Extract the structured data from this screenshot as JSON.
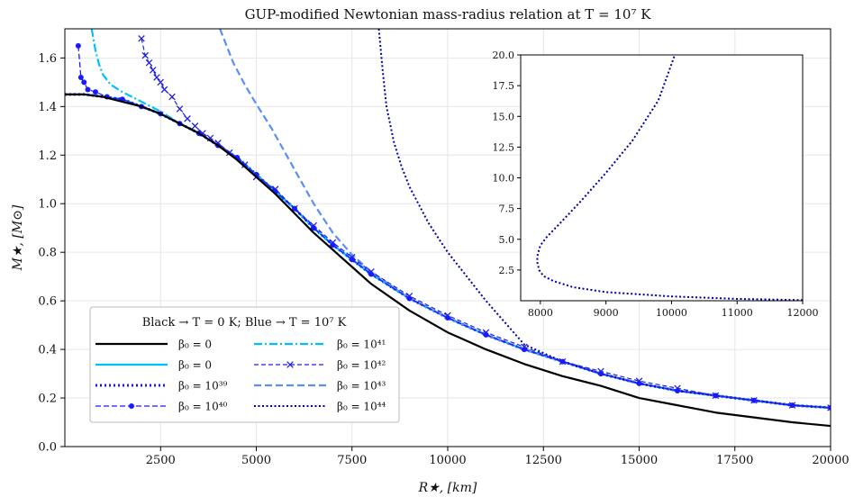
{
  "chart_data": {
    "type": "line",
    "title": "GUP-modified Newtonian mass-radius relation at T = 10⁷ K",
    "xlabel": "R★, [km]",
    "ylabel": "M★, [M⊙]",
    "xlim": [
      0,
      20000
    ],
    "ylim": [
      0,
      1.72
    ],
    "xticks": [
      "2500",
      "5000",
      "7500",
      "10000",
      "12500",
      "15000",
      "17500",
      "20000"
    ],
    "yticks": [
      "0.0",
      "0.2",
      "0.4",
      "0.6",
      "0.8",
      "1.0",
      "1.2",
      "1.4",
      "1.6"
    ],
    "grid": true,
    "legend": {
      "title": "Black → T = 0 K; Blue → T = 10⁷ K",
      "placement": "lower-left",
      "columns": 2
    },
    "series": [
      {
        "name": "β₀ = 0",
        "color": "#000000",
        "style": "solid",
        "x": [
          0,
          500,
          1000,
          1500,
          2000,
          2500,
          3000,
          3500,
          4000,
          4500,
          5000,
          5500,
          6000,
          6500,
          7000,
          7500,
          8000,
          9000,
          10000,
          11000,
          12000,
          13000,
          14000,
          15000,
          16000,
          17000,
          18000,
          19000,
          20000
        ],
        "y": [
          1.45,
          1.45,
          1.44,
          1.42,
          1.4,
          1.37,
          1.33,
          1.29,
          1.24,
          1.18,
          1.11,
          1.04,
          0.96,
          0.88,
          0.81,
          0.74,
          0.67,
          0.56,
          0.47,
          0.4,
          0.34,
          0.29,
          0.25,
          0.2,
          0.17,
          0.14,
          0.12,
          0.1,
          0.085
        ]
      },
      {
        "name": "β₀ = 0",
        "color": "#00bfff",
        "style": "solid",
        "x": [
          0,
          500,
          1000,
          1500,
          2000,
          2500,
          3000,
          3500,
          4000,
          4500,
          5000,
          5500,
          6000,
          6500,
          7000,
          7500,
          8000,
          9000,
          10000,
          11000,
          12000,
          13000,
          14000,
          15000,
          16000,
          17000,
          18000,
          19000,
          20000
        ],
        "y": [
          1.45,
          1.45,
          1.44,
          1.43,
          1.4,
          1.37,
          1.33,
          1.29,
          1.24,
          1.19,
          1.12,
          1.05,
          0.98,
          0.9,
          0.83,
          0.77,
          0.71,
          0.61,
          0.53,
          0.46,
          0.4,
          0.35,
          0.3,
          0.26,
          0.23,
          0.21,
          0.19,
          0.17,
          0.16
        ]
      },
      {
        "name": "β₀ = 10³⁹",
        "color": "#1a1aff",
        "style": "dotted-thick",
        "x": [
          0,
          500,
          1000,
          1500,
          2000,
          2500,
          3000,
          3500,
          4000,
          4500,
          5000,
          5500,
          6000,
          6500,
          7000,
          7500,
          8000,
          9000,
          10000,
          11000,
          12000,
          13000,
          14000,
          15000,
          16000,
          17000,
          18000,
          19000,
          20000
        ],
        "y": [
          1.45,
          1.45,
          1.44,
          1.43,
          1.4,
          1.37,
          1.33,
          1.29,
          1.24,
          1.19,
          1.12,
          1.05,
          0.98,
          0.9,
          0.83,
          0.77,
          0.71,
          0.61,
          0.53,
          0.46,
          0.4,
          0.35,
          0.3,
          0.26,
          0.23,
          0.21,
          0.19,
          0.17,
          0.16
        ]
      },
      {
        "name": "β₀ = 10⁴⁰",
        "color": "#1a1aff",
        "style": "dashed-dot-marker",
        "x": [
          350,
          420,
          500,
          600,
          800,
          1100,
          1500,
          2000,
          2500,
          3000,
          3500,
          4000,
          4500,
          5000,
          5500,
          6000,
          6500,
          7000,
          7500,
          8000,
          9000,
          10000,
          11000,
          12000,
          13000,
          14000,
          15000,
          16000,
          17000,
          18000,
          19000,
          20000
        ],
        "y": [
          1.65,
          1.52,
          1.5,
          1.47,
          1.46,
          1.44,
          1.43,
          1.4,
          1.37,
          1.33,
          1.29,
          1.24,
          1.19,
          1.12,
          1.05,
          0.98,
          0.9,
          0.83,
          0.77,
          0.71,
          0.61,
          0.53,
          0.46,
          0.4,
          0.35,
          0.3,
          0.26,
          0.23,
          0.21,
          0.19,
          0.17,
          0.16
        ]
      },
      {
        "name": "β₀ = 10⁴¹",
        "color": "#00bfff",
        "style": "dashdot",
        "x": [
          700,
          800,
          900,
          1000,
          1200,
          1500,
          2000,
          2500,
          3000,
          3500,
          4000,
          4500,
          5000,
          5500,
          6000,
          6500,
          7000,
          7500,
          8000,
          9000,
          10000,
          11000,
          12000,
          13000,
          14000,
          15000,
          16000,
          17000,
          18000,
          19000,
          20000
        ],
        "y": [
          1.72,
          1.63,
          1.57,
          1.53,
          1.49,
          1.46,
          1.42,
          1.38,
          1.33,
          1.29,
          1.24,
          1.19,
          1.12,
          1.05,
          0.98,
          0.9,
          0.83,
          0.77,
          0.71,
          0.61,
          0.53,
          0.46,
          0.4,
          0.35,
          0.3,
          0.26,
          0.23,
          0.21,
          0.19,
          0.17,
          0.16
        ]
      },
      {
        "name": "β₀ = 10⁴²",
        "color": "#2222dd",
        "style": "dashed-x-marker",
        "x": [
          2000,
          2100,
          2200,
          2300,
          2400,
          2500,
          2600,
          2800,
          3000,
          3200,
          3400,
          3600,
          3800,
          4000,
          4300,
          4700,
          5000,
          5500,
          6000,
          6500,
          7000,
          7500,
          8000,
          9000,
          10000,
          11000,
          12000,
          13000,
          14000,
          15000,
          16000,
          17000,
          18000,
          19000,
          20000
        ],
        "y": [
          1.68,
          1.61,
          1.58,
          1.55,
          1.52,
          1.5,
          1.47,
          1.44,
          1.39,
          1.35,
          1.32,
          1.29,
          1.27,
          1.25,
          1.21,
          1.16,
          1.11,
          1.06,
          0.98,
          0.91,
          0.84,
          0.78,
          0.72,
          0.62,
          0.54,
          0.47,
          0.41,
          0.35,
          0.31,
          0.27,
          0.24,
          0.21,
          0.19,
          0.17,
          0.16
        ]
      },
      {
        "name": "β₀ = 10⁴³",
        "color": "#5b8ff0",
        "style": "dashed",
        "x": [
          4050,
          4200,
          4400,
          4700,
          5000,
          5400,
          6000,
          6500,
          7000,
          7500,
          8000,
          9000,
          10000,
          11000,
          12000,
          13000,
          14000,
          15000,
          16000,
          17000,
          18000,
          19000,
          20000
        ],
        "y": [
          1.72,
          1.66,
          1.58,
          1.49,
          1.41,
          1.31,
          1.14,
          1.0,
          0.88,
          0.79,
          0.72,
          0.61,
          0.53,
          0.46,
          0.4,
          0.35,
          0.3,
          0.26,
          0.23,
          0.21,
          0.19,
          0.17,
          0.16
        ]
      },
      {
        "name": "β₀ = 10⁴⁴",
        "color": "#0000aa",
        "style": "dotted",
        "x": [
          8200,
          8300,
          8400,
          8600,
          8800,
          9000,
          9500,
          10000,
          10500,
          11000,
          12000,
          13000,
          14000,
          15000,
          16000,
          17000,
          18000,
          19000,
          20000
        ],
        "y": [
          1.72,
          1.55,
          1.4,
          1.25,
          1.15,
          1.07,
          0.92,
          0.8,
          0.7,
          0.6,
          0.42,
          0.35,
          0.3,
          0.26,
          0.23,
          0.21,
          0.19,
          0.17,
          0.16
        ]
      }
    ],
    "inset": {
      "type": "line",
      "xlim": [
        7700,
        12000
      ],
      "ylim": [
        0,
        20
      ],
      "xticks": [
        "8000",
        "9000",
        "10000",
        "11000",
        "12000"
      ],
      "yticks": [
        "2.5",
        "5.0",
        "7.5",
        "10.0",
        "12.5",
        "15.0",
        "17.5",
        "20.0"
      ],
      "series": [
        {
          "name": "β₀ = 10⁴⁴",
          "color": "#0000aa",
          "style": "dotted",
          "x": [
            12000,
            11000,
            10000,
            9000,
            8500,
            8200,
            8050,
            7980,
            7950,
            7960,
            8000,
            8100,
            8300,
            8600,
            9000,
            9400,
            9800,
            10050
          ],
          "y": [
            0.05,
            0.15,
            0.35,
            0.7,
            1.1,
            1.6,
            2.0,
            2.5,
            3.2,
            3.8,
            4.5,
            5.2,
            6.3,
            8.0,
            10.4,
            13.0,
            16.3,
            20.0
          ]
        }
      ]
    }
  }
}
